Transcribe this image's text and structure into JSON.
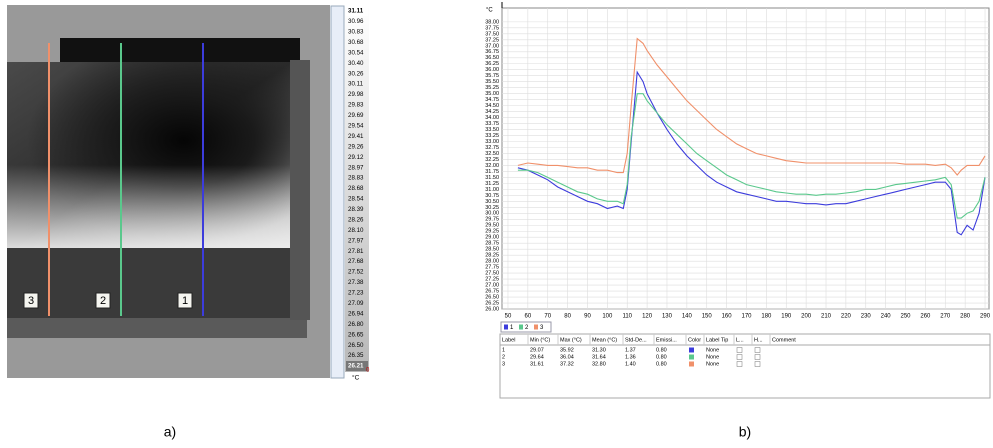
{
  "panel_a": {
    "scale_labels": [
      "31.11",
      "30.96",
      "30.83",
      "30.68",
      "30.54",
      "30.40",
      "30.26",
      "30.11",
      "29.98",
      "29.83",
      "29.69",
      "29.54",
      "29.41",
      "29.26",
      "29.12",
      "28.97",
      "28.83",
      "28.68",
      "28.54",
      "28.39",
      "28.26",
      "28.10",
      "27.97",
      "27.81",
      "27.68",
      "27.52",
      "27.38",
      "27.23",
      "27.09",
      "26.94",
      "26.80",
      "26.65",
      "26.50",
      "26.35",
      "26.21"
    ],
    "unit": "°C",
    "scale_zero": "0",
    "line_labels": [
      "3",
      "2",
      "1"
    ],
    "caption": "a)"
  },
  "chart_data": {
    "type": "line",
    "y_label": "°C",
    "x": [
      55,
      60,
      65,
      70,
      75,
      80,
      85,
      90,
      95,
      100,
      105,
      108,
      110,
      112,
      115,
      118,
      120,
      125,
      130,
      135,
      140,
      145,
      150,
      155,
      160,
      165,
      170,
      175,
      180,
      185,
      190,
      195,
      200,
      205,
      210,
      215,
      220,
      225,
      230,
      235,
      240,
      245,
      250,
      255,
      260,
      265,
      270,
      273,
      276,
      278,
      281,
      284,
      287,
      290
    ],
    "series": [
      {
        "name": "1",
        "color": "#3c3cdc",
        "values": [
          31.9,
          31.8,
          31.6,
          31.4,
          31.1,
          30.9,
          30.7,
          30.5,
          30.4,
          30.2,
          30.3,
          30.2,
          31.0,
          33.0,
          35.9,
          35.5,
          35.0,
          34.2,
          33.5,
          32.9,
          32.4,
          32.0,
          31.6,
          31.3,
          31.1,
          30.9,
          30.8,
          30.7,
          30.6,
          30.5,
          30.5,
          30.45,
          30.4,
          30.4,
          30.35,
          30.4,
          30.4,
          30.5,
          30.6,
          30.7,
          30.8,
          30.9,
          31.0,
          31.1,
          31.2,
          31.3,
          31.3,
          31.0,
          29.2,
          29.1,
          29.5,
          29.3,
          30.0,
          31.5
        ]
      },
      {
        "name": "2",
        "color": "#5ac88c",
        "values": [
          31.8,
          31.8,
          31.7,
          31.5,
          31.3,
          31.1,
          30.9,
          30.8,
          30.6,
          30.5,
          30.5,
          30.4,
          31.2,
          33.2,
          35.0,
          35.0,
          34.7,
          34.2,
          33.7,
          33.3,
          32.9,
          32.5,
          32.2,
          31.9,
          31.6,
          31.4,
          31.2,
          31.1,
          31.0,
          30.9,
          30.85,
          30.8,
          30.8,
          30.75,
          30.8,
          30.8,
          30.85,
          30.9,
          31.0,
          31.0,
          31.1,
          31.2,
          31.25,
          31.3,
          31.35,
          31.4,
          31.5,
          31.2,
          29.8,
          29.8,
          30.0,
          30.1,
          30.5,
          31.5
        ]
      },
      {
        "name": "3",
        "color": "#f0906a",
        "values": [
          32.0,
          32.1,
          32.05,
          32.0,
          32.0,
          31.95,
          31.9,
          31.9,
          31.8,
          31.8,
          31.7,
          31.7,
          32.5,
          34.5,
          37.3,
          37.1,
          36.8,
          36.2,
          35.7,
          35.2,
          34.7,
          34.3,
          33.9,
          33.5,
          33.2,
          32.9,
          32.7,
          32.5,
          32.4,
          32.3,
          32.2,
          32.15,
          32.1,
          32.1,
          32.1,
          32.1,
          32.1,
          32.1,
          32.1,
          32.1,
          32.1,
          32.1,
          32.05,
          32.05,
          32.05,
          32.0,
          32.05,
          31.9,
          31.6,
          31.8,
          32.0,
          32.0,
          32.0,
          32.4
        ]
      }
    ],
    "xlim": [
      47,
      292
    ],
    "xticks": [
      50,
      60,
      70,
      80,
      90,
      100,
      110,
      120,
      130,
      140,
      150,
      160,
      170,
      180,
      190,
      200,
      210,
      220,
      230,
      240,
      250,
      260,
      270,
      280,
      290
    ],
    "ylim": [
      26,
      38.58
    ],
    "yticks": [
      {
        "value": 38,
        "label": "38.00"
      },
      {
        "value": 37.75,
        "label": "37.75"
      },
      {
        "value": 37.5,
        "label": "37.50"
      },
      {
        "value": 37.25,
        "label": "37.25"
      },
      {
        "value": 37,
        "label": "37.00"
      },
      {
        "value": 36.75,
        "label": "36.75"
      },
      {
        "value": 36.5,
        "label": "36.50"
      },
      {
        "value": 36.25,
        "label": "36.25"
      },
      {
        "value": 36,
        "label": "36.00"
      },
      {
        "value": 35.75,
        "label": "35.75"
      },
      {
        "value": 35.5,
        "label": "35.50"
      },
      {
        "value": 35.25,
        "label": "35.25"
      },
      {
        "value": 35,
        "label": "35.00"
      },
      {
        "value": 34.75,
        "label": "34.75"
      },
      {
        "value": 34.5,
        "label": "34.50"
      },
      {
        "value": 34.25,
        "label": "34.25"
      },
      {
        "value": 34,
        "label": "34.00"
      },
      {
        "value": 33.75,
        "label": "33.75"
      },
      {
        "value": 33.5,
        "label": "33.50"
      },
      {
        "value": 33.25,
        "label": "33.25"
      },
      {
        "value": 33,
        "label": "33.00"
      },
      {
        "value": 32.75,
        "label": "32.75"
      },
      {
        "value": 32.5,
        "label": "32.50"
      },
      {
        "value": 32.25,
        "label": "32.25"
      },
      {
        "value": 32,
        "label": "32.00"
      },
      {
        "value": 31.75,
        "label": "31.75"
      },
      {
        "value": 31.5,
        "label": "31.50"
      },
      {
        "value": 31.25,
        "label": "31.25"
      },
      {
        "value": 31,
        "label": "31.00"
      },
      {
        "value": 30.75,
        "label": "30.75"
      },
      {
        "value": 30.5,
        "label": "30.50"
      },
      {
        "value": 30.25,
        "label": "30.25"
      },
      {
        "value": 30,
        "label": "30.00"
      },
      {
        "value": 29.75,
        "label": "29.75"
      },
      {
        "value": 29.5,
        "label": "29.50"
      },
      {
        "value": 29.25,
        "label": "29.25"
      },
      {
        "value": 29,
        "label": "29.00"
      },
      {
        "value": 28.75,
        "label": "28.75"
      },
      {
        "value": 28.5,
        "label": "28.50"
      },
      {
        "value": 28.25,
        "label": "28.25"
      },
      {
        "value": 28,
        "label": "28.00"
      },
      {
        "value": 27.75,
        "label": "27.75"
      },
      {
        "value": 27.5,
        "label": "27.50"
      },
      {
        "value": 27.25,
        "label": "27.25"
      },
      {
        "value": 27,
        "label": "27.00"
      },
      {
        "value": 26.75,
        "label": "26.75"
      },
      {
        "value": 26.5,
        "label": "26.50"
      },
      {
        "value": 26.25,
        "label": "26.25"
      },
      {
        "value": 26,
        "label": "26.00"
      }
    ],
    "grid": true
  },
  "table": {
    "headers": [
      "Label",
      "Min (°C)",
      "Max (°C)",
      "Mean (°C)",
      "Std-De...",
      "Emissi...",
      "Color",
      "Label Tip",
      "L...",
      "H...",
      "Comment"
    ],
    "rows": [
      [
        "1",
        "29.07",
        "35.92",
        "31.30",
        "1.37",
        "0.80",
        "None"
      ],
      [
        "2",
        "29.64",
        "36.04",
        "31.64",
        "1.36",
        "0.80",
        "None"
      ],
      [
        "3",
        "31.61",
        "37.32",
        "32.80",
        "1.40",
        "0.80",
        "None"
      ]
    ]
  },
  "caption_b": "b)"
}
